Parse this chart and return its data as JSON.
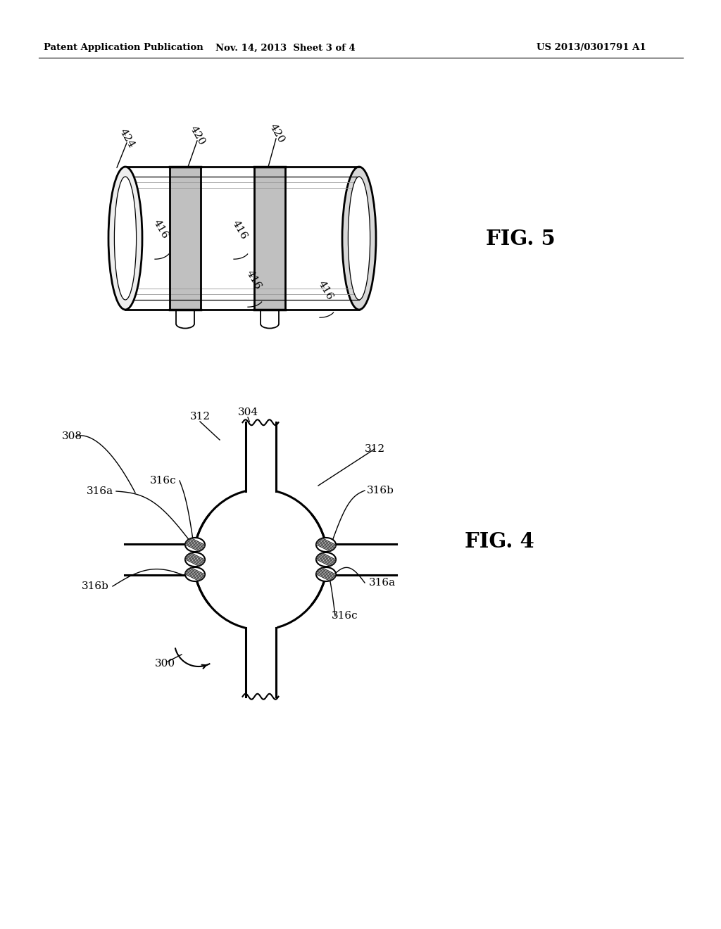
{
  "background_color": "#ffffff",
  "header_left": "Patent Application Publication",
  "header_mid": "Nov. 14, 2013  Sheet 3 of 4",
  "header_right": "US 2013/0301791 A1",
  "fig5_label": "FIG. 5",
  "fig4_label": "FIG. 4",
  "lc": "#000000",
  "gray_fill": "#d8d8d8",
  "light_gray": "#eeeeee"
}
